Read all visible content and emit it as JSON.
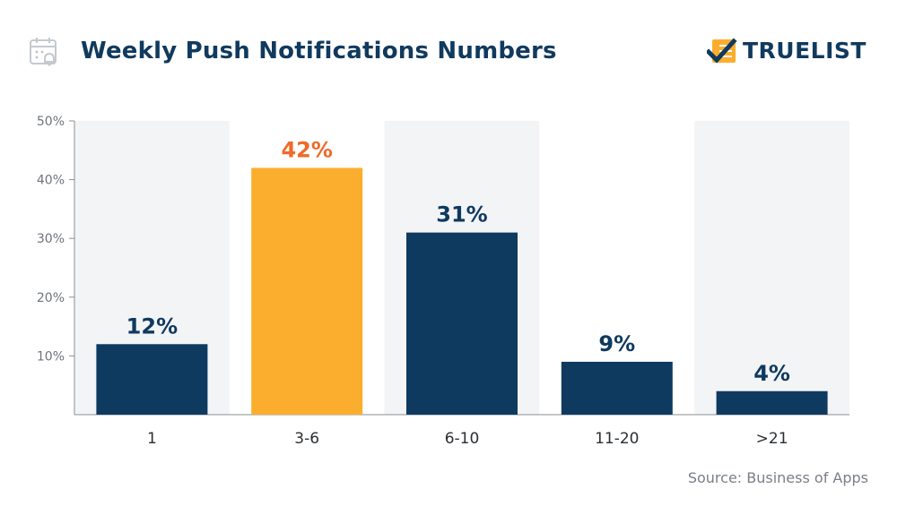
{
  "header": {
    "title": "Weekly Push Notifications Numbers",
    "brand_name": "TRUELIST",
    "calendar_icon": "calendar-bell-icon",
    "brand_icon": "checkmark-list-icon"
  },
  "colors": {
    "navy": "#0f3a60",
    "highlight_bar": "#fbae2d",
    "highlight_label": "#ef6a2a",
    "band": "#f3f4f6"
  },
  "chart_data": {
    "type": "bar",
    "categories": [
      "1",
      "3-6",
      "6-10",
      "11-20",
      ">21"
    ],
    "values": [
      12,
      42,
      31,
      9,
      4
    ],
    "value_labels": [
      "12%",
      "42%",
      "31%",
      "9%",
      "4%"
    ],
    "highlight_index": 1,
    "ylim": [
      0,
      50
    ],
    "yticks": [
      10,
      20,
      30,
      40,
      50
    ],
    "ytick_labels": [
      "10%",
      "20%",
      "30%",
      "40%",
      "50%"
    ],
    "grid": false,
    "alternating_bands": true
  },
  "source": "Source: Business of Apps"
}
